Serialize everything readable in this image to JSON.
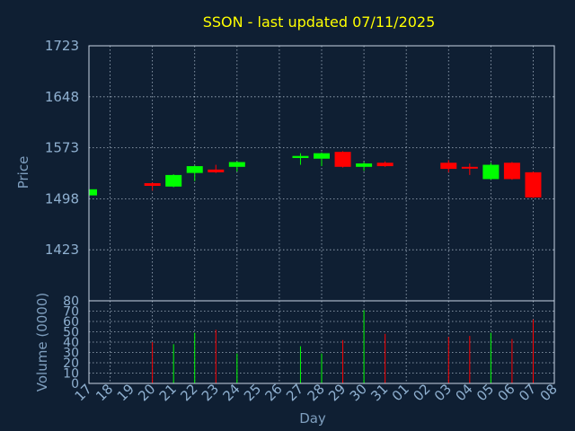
{
  "chart_data": {
    "type": "candlestick",
    "title": "SSON - last updated 07/11/2025",
    "xlabel": "Day",
    "price_axis": {
      "label": "Price",
      "ticks": [
        1423,
        1498,
        1573,
        1648,
        1723
      ],
      "range": [
        1348,
        1723
      ]
    },
    "volume_axis": {
      "label": "Volume (0000)",
      "ticks": [
        0,
        10,
        20,
        30,
        40,
        50,
        60,
        70,
        80
      ],
      "range": [
        0,
        80
      ]
    },
    "x_ticks": [
      "17",
      "18",
      "19",
      "20",
      "21",
      "22",
      "23",
      "24",
      "25",
      "26",
      "27",
      "28",
      "29",
      "30",
      "31",
      "01",
      "02",
      "03",
      "04",
      "05",
      "06",
      "07",
      "08"
    ],
    "grid": true,
    "up_color": "#00ff00",
    "down_color": "#ff0000",
    "candles": [
      {
        "day": "17",
        "open": 1503,
        "close": 1512,
        "high": 1513,
        "low": 1502,
        "volume": 0
      },
      {
        "day": "20",
        "open": 1521,
        "close": 1517,
        "high": 1522,
        "low": 1510,
        "volume": 40
      },
      {
        "day": "21",
        "open": 1516,
        "close": 1533,
        "high": 1534,
        "low": 1515,
        "volume": 38
      },
      {
        "day": "22",
        "open": 1536,
        "close": 1546,
        "high": 1547,
        "low": 1524,
        "volume": 49
      },
      {
        "day": "23",
        "open": 1541,
        "close": 1537,
        "high": 1548,
        "low": 1536,
        "volume": 52
      },
      {
        "day": "24",
        "open": 1545,
        "close": 1552,
        "high": 1553,
        "low": 1538,
        "volume": 29
      },
      {
        "day": "27",
        "open": 1558,
        "close": 1561,
        "high": 1565,
        "low": 1548,
        "volume": 36
      },
      {
        "day": "28",
        "open": 1557,
        "close": 1565,
        "high": 1566,
        "low": 1546,
        "volume": 29
      },
      {
        "day": "29",
        "open": 1567,
        "close": 1545,
        "high": 1568,
        "low": 1544,
        "volume": 42
      },
      {
        "day": "30",
        "open": 1545,
        "close": 1550,
        "high": 1552,
        "low": 1539,
        "volume": 71
      },
      {
        "day": "31",
        "open": 1551,
        "close": 1546,
        "high": 1553,
        "low": 1545,
        "volume": 48
      },
      {
        "day": "03",
        "open": 1551,
        "close": 1542,
        "high": 1555,
        "low": 1537,
        "volume": 45
      },
      {
        "day": "04",
        "open": 1545,
        "close": 1543,
        "high": 1550,
        "low": 1533,
        "volume": 46
      },
      {
        "day": "05",
        "open": 1527,
        "close": 1548,
        "high": 1551,
        "low": 1526,
        "volume": 49
      },
      {
        "day": "06",
        "open": 1551,
        "close": 1527,
        "high": 1552,
        "low": 1526,
        "volume": 43
      },
      {
        "day": "07",
        "open": 1537,
        "close": 1500,
        "high": 1538,
        "low": 1499,
        "volume": 62
      }
    ]
  }
}
